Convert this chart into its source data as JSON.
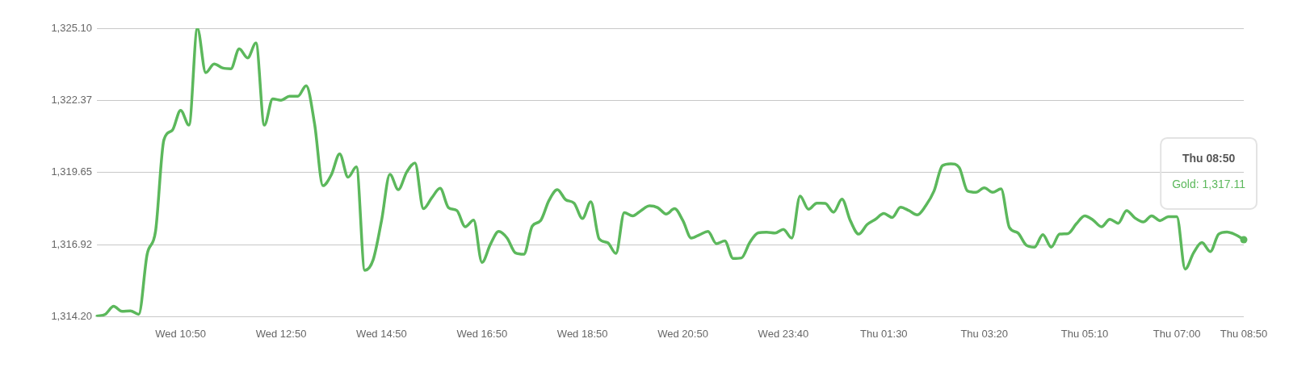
{
  "chart_data": {
    "type": "line",
    "categories": [
      null,
      null,
      null,
      null,
      null,
      null,
      null,
      null,
      null,
      null,
      "Wed 10:50",
      null,
      null,
      null,
      null,
      null,
      null,
      null,
      null,
      null,
      null,
      null,
      "Wed 12:50",
      null,
      null,
      null,
      null,
      null,
      null,
      null,
      null,
      null,
      null,
      null,
      "Wed 14:50",
      null,
      null,
      null,
      null,
      null,
      null,
      null,
      null,
      null,
      null,
      null,
      "Wed 16:50",
      null,
      null,
      null,
      null,
      null,
      null,
      null,
      null,
      null,
      null,
      null,
      "Wed 18:50",
      null,
      null,
      null,
      null,
      null,
      null,
      null,
      null,
      null,
      null,
      null,
      "Wed 20:50",
      null,
      null,
      null,
      null,
      null,
      null,
      null,
      null,
      null,
      null,
      null,
      "Wed 23:40",
      null,
      null,
      null,
      null,
      null,
      null,
      null,
      null,
      null,
      null,
      null,
      "Thu 01:30",
      null,
      null,
      null,
      null,
      null,
      null,
      null,
      null,
      null,
      null,
      null,
      "Thu 03:20",
      null,
      null,
      null,
      null,
      null,
      null,
      null,
      null,
      null,
      null,
      null,
      "Thu 05:10",
      null,
      null,
      null,
      null,
      null,
      null,
      null,
      null,
      null,
      null,
      "Thu 07:00",
      null,
      null,
      null,
      null,
      null,
      null,
      null,
      "Thu 08:50"
    ],
    "series": [
      {
        "color": "#5cb85c",
        "values": [
          1314.22,
          1314.29,
          1314.59,
          1314.4,
          1314.42,
          1314.29,
          1316.56,
          1317.42,
          1320.88,
          1321.24,
          1322.0,
          1321.44,
          1325.1,
          1323.42,
          1323.75,
          1323.6,
          1323.57,
          1324.32,
          1323.98,
          1324.54,
          1321.44,
          1322.43,
          1322.38,
          1322.53,
          1322.53,
          1322.93,
          1321.49,
          1319.15,
          1319.56,
          1320.35,
          1319.47,
          1319.86,
          1315.95,
          1316.35,
          1317.83,
          1319.58,
          1319.0,
          1319.66,
          1320.01,
          1318.28,
          1318.69,
          1319.05,
          1318.32,
          1318.21,
          1317.6,
          1317.85,
          1316.25,
          1316.93,
          1317.42,
          1317.17,
          1316.61,
          1316.56,
          1317.62,
          1317.83,
          1318.59,
          1319.0,
          1318.62,
          1318.49,
          1317.91,
          1318.54,
          1317.14,
          1317.0,
          1316.59,
          1318.13,
          1318.01,
          1318.21,
          1318.39,
          1318.32,
          1318.08,
          1318.28,
          1317.83,
          1317.17,
          1317.3,
          1317.42,
          1316.96,
          1317.06,
          1316.4,
          1316.42,
          1317.01,
          1317.37,
          1317.39,
          1317.36,
          1317.5,
          1317.17,
          1318.76,
          1318.26,
          1318.49,
          1318.48,
          1318.15,
          1318.64,
          1317.83,
          1317.32,
          1317.68,
          1317.88,
          1318.1,
          1317.95,
          1318.34,
          1318.21,
          1318.05,
          1318.39,
          1318.95,
          1319.91,
          1319.98,
          1319.84,
          1318.95,
          1318.9,
          1319.07,
          1318.9,
          1319.03,
          1317.57,
          1317.37,
          1316.91,
          1316.83,
          1317.3,
          1316.83,
          1317.32,
          1317.34,
          1317.71,
          1318.01,
          1317.85,
          1317.6,
          1317.88,
          1317.73,
          1318.21,
          1317.93,
          1317.78,
          1318.01,
          1317.83,
          1317.98,
          1317.98,
          1316.0,
          1316.61,
          1317.0,
          1316.66,
          1317.32,
          1317.4,
          1317.3,
          1317.11
        ]
      }
    ],
    "ylim": [
      1314.2,
      1325.1
    ],
    "yticks": [
      {
        "value": 1314.2,
        "label": "1,314.20"
      },
      {
        "value": 1316.92,
        "label": "1,316.92"
      },
      {
        "value": 1319.65,
        "label": "1,319.65"
      },
      {
        "value": 1322.37,
        "label": "1,322.37"
      },
      {
        "value": 1325.1,
        "label": "1,325.10"
      }
    ],
    "grid": "y",
    "legend": false,
    "marker": "none",
    "line_style": "solid",
    "annotations": [
      "Thu 08:50",
      "Gold: 1,317.11"
    ]
  }
}
